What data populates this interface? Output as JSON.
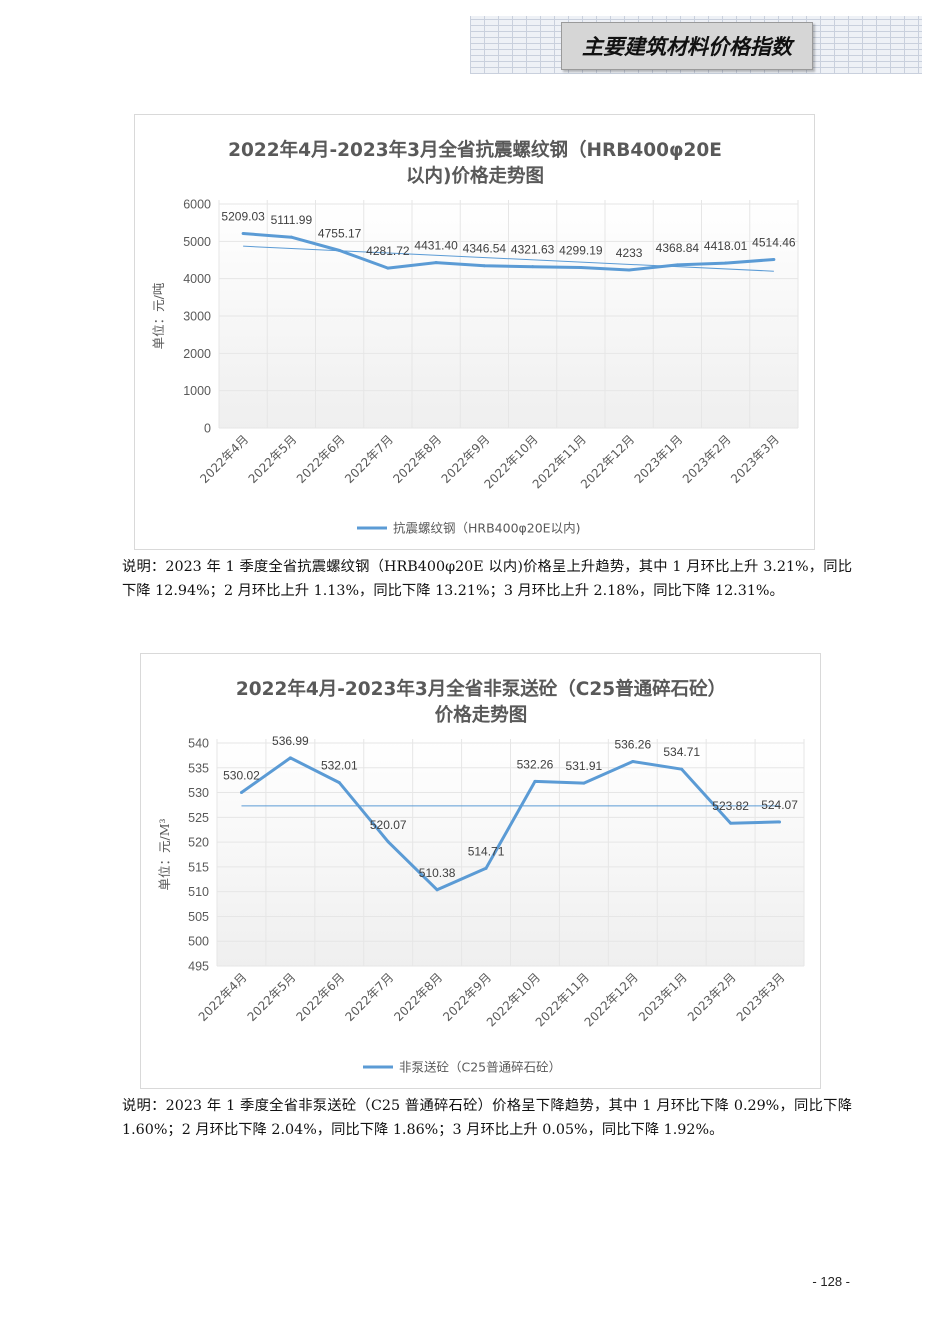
{
  "header": {
    "title": "主要建筑材料价格指数"
  },
  "chart_data": [
    {
      "type": "line",
      "title": "2022年4月-2023年3月全省抗震螺纹钢（HRB400φ20E以内)价格走势图",
      "title_lines": [
        "2022年4月-2023年3月全省抗震螺纹钢（HRB400φ20E",
        "以内)价格走势图"
      ],
      "ylabel": "单位：元/吨",
      "xlabel": "",
      "ylim": [
        0,
        6000
      ],
      "yticks": [
        0,
        1000,
        2000,
        3000,
        4000,
        5000,
        6000
      ],
      "categories": [
        "2022年4月",
        "2022年5月",
        "2022年6月",
        "2022年7月",
        "2022年8月",
        "2022年9月",
        "2022年10月",
        "2022年11月",
        "2022年12月",
        "2023年1月",
        "2023年2月",
        "2023年3月"
      ],
      "series": [
        {
          "name": "抗震螺纹钢（HRB400φ20E以内)",
          "values": [
            5209.03,
            5111.99,
            4755.17,
            4281.72,
            4431.4,
            4346.54,
            4321.63,
            4299.19,
            4233,
            4368.84,
            4418.01,
            4514.46
          ],
          "labels": [
            "5209.03",
            "5111.99",
            "4755.17",
            "4281.72",
            "4431.40",
            "4346.54",
            "4321.63",
            "4299.19",
            "4233",
            "4368.84",
            "4418.01",
            "4514.46"
          ]
        }
      ],
      "trendline": [
        4870,
        4200
      ],
      "legend": "bottom",
      "grid": true,
      "color": "#5b9bd5"
    },
    {
      "type": "line",
      "title": "2022年4月-2023年3月全省非泵送砼（C25普通碎石砼）价格走势图",
      "title_lines": [
        "2022年4月-2023年3月全省非泵送砼（C25普通碎石砼）",
        "价格走势图"
      ],
      "ylabel": "单位：元/M³",
      "xlabel": "",
      "ylim": [
        495,
        540
      ],
      "yticks": [
        495,
        500,
        505,
        510,
        515,
        520,
        525,
        530,
        535,
        540
      ],
      "categories": [
        "2022年4月",
        "2022年5月",
        "2022年6月",
        "2022年7月",
        "2022年8月",
        "2022年9月",
        "2022年10月",
        "2022年11月",
        "2022年12月",
        "2023年1月",
        "2023年2月",
        "2023年3月"
      ],
      "series": [
        {
          "name": "非泵送砼（C25普通碎石砼）",
          "values": [
            530.02,
            536.99,
            532.01,
            520.07,
            510.38,
            514.71,
            532.26,
            531.91,
            536.26,
            534.71,
            523.82,
            524.07
          ],
          "labels": [
            "530.02",
            "536.99",
            "532.01",
            "520.07",
            "510.38",
            "514.71",
            "532.26",
            "531.91",
            "536.26",
            "534.71",
            "523.82",
            "524.07"
          ]
        }
      ],
      "trendline": [
        527.3,
        527.3
      ],
      "legend": "bottom",
      "grid": true,
      "color": "#5b9bd5"
    }
  ],
  "captions": [
    "说明：2023 年 1 季度全省抗震螺纹钢（HRB400φ20E 以内)价格呈上升趋势，其中 1 月环比上升 3.21%，同比下降 12.94%；2 月环比上升 1.13%，同比下降 13.21%；3 月环比上升 2.18%，同比下降 12.31%。",
    "说明：2023 年 1 季度全省非泵送砼（C25 普通碎石砼）价格呈下降趋势，其中 1 月环比下降 0.29%，同比下降 1.60%；2 月环比下降 2.04%，同比下降 1.86%；3 月环比上升 0.05%，同比下降 1.92%。"
  ],
  "page_number": "- 128 -"
}
